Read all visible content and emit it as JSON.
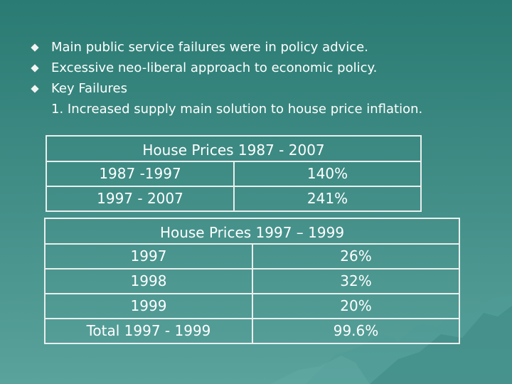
{
  "bullets": [
    "Main public service failures were in policy advice.",
    "Excessive neo-liberal approach to economic policy.",
    "Key Failures"
  ],
  "sub_item": "1. Increased supply main solution to house price inflation.",
  "table1": {
    "title": "House Prices 1987 - 2007",
    "rows": [
      {
        "period": "1987 -1997",
        "value": "140%"
      },
      {
        "period": "1997 - 2007",
        "value": "241%"
      }
    ]
  },
  "table2": {
    "title": "House Prices 1997 – 1999",
    "rows": [
      {
        "period": "1997",
        "value": "26%"
      },
      {
        "period": "1998",
        "value": "32%"
      },
      {
        "period": "1999",
        "value": "20%"
      },
      {
        "period": "Total 1997 - 1999",
        "value": "99.6%"
      }
    ]
  }
}
